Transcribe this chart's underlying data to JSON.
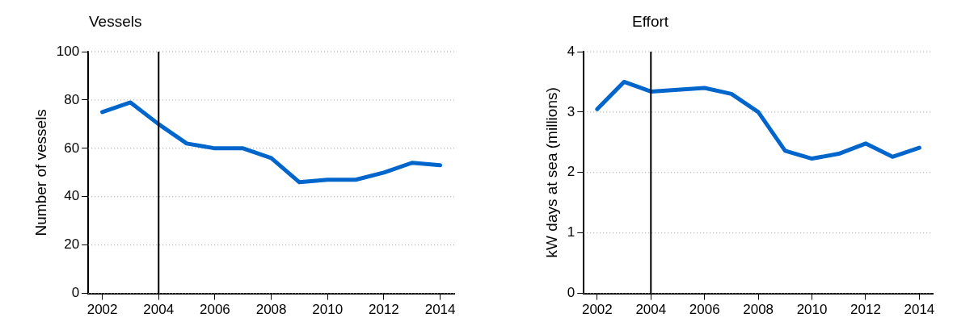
{
  "chart_data": [
    {
      "type": "line",
      "title": "Vessels",
      "ylabel": "Number of vessels",
      "x": [
        2002,
        2003,
        2004,
        2005,
        2006,
        2007,
        2008,
        2009,
        2010,
        2011,
        2012,
        2013,
        2014
      ],
      "series": [
        {
          "color": "#0066cc",
          "values": [
            75,
            79,
            70,
            62,
            60,
            60,
            56,
            46,
            47,
            47,
            50,
            54,
            53
          ]
        }
      ],
      "xlim": [
        2001.5,
        2014.5
      ],
      "xticks": [
        2002,
        2004,
        2006,
        2008,
        2010,
        2012,
        2014
      ],
      "ylim": [
        0,
        100
      ],
      "yticks": [
        0,
        20,
        40,
        60,
        80,
        100
      ],
      "ref_lines": [
        {
          "axis": "x",
          "value": 2004,
          "color": "#000000"
        }
      ],
      "grid": "y",
      "legend": false,
      "marker": "none",
      "line_style": "solid"
    },
    {
      "type": "line",
      "title": "Effort",
      "ylabel": "kW days at sea (millions)",
      "x": [
        2002,
        2003,
        2004,
        2005,
        2006,
        2007,
        2008,
        2009,
        2010,
        2011,
        2012,
        2013,
        2014
      ],
      "series": [
        {
          "color": "#0066cc",
          "values": [
            3.05,
            3.5,
            3.34,
            3.37,
            3.4,
            3.3,
            3.0,
            2.36,
            2.23,
            2.31,
            2.48,
            2.26,
            2.41
          ]
        }
      ],
      "xlim": [
        2001.5,
        2014.5
      ],
      "xticks": [
        2002,
        2004,
        2006,
        2008,
        2010,
        2012,
        2014
      ],
      "ylim": [
        0,
        4
      ],
      "yticks": [
        0,
        1,
        2,
        3,
        4
      ],
      "ref_lines": [
        {
          "axis": "x",
          "value": 2004,
          "color": "#000000"
        }
      ],
      "grid": "y",
      "legend": false,
      "marker": "none",
      "line_style": "solid"
    }
  ]
}
